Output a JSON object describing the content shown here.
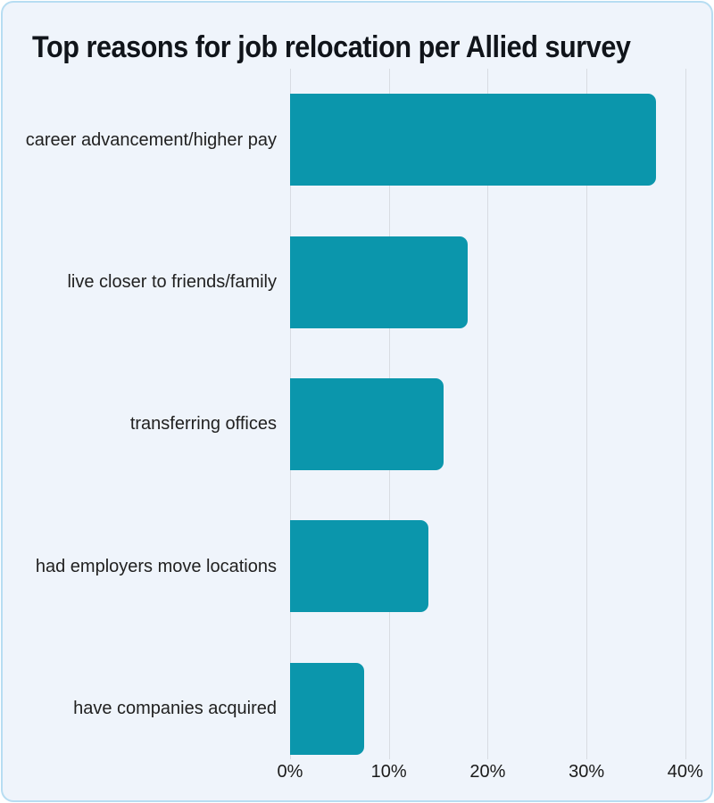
{
  "title": "Top reasons for job relocation per Allied survey",
  "chart_data": {
    "type": "bar",
    "orientation": "horizontal",
    "title": "Top reasons for job relocation per Allied survey",
    "categories": [
      "career advancement/higher pay",
      "live closer to friends/family",
      "transferring offices",
      "had employers move locations",
      "have companies acquired"
    ],
    "values": [
      37,
      18,
      15.5,
      14,
      7.5
    ],
    "unit": "%",
    "xlabel": "",
    "ylabel": "",
    "xlim": [
      0,
      42
    ],
    "xticks": [
      0,
      10,
      20,
      30,
      40
    ],
    "xtick_labels": [
      "0%",
      "10%",
      "20%",
      "30%",
      "40%"
    ],
    "grid": "vertical",
    "legend": "none"
  },
  "colors": {
    "bar": "#0b96ac",
    "card_background": "#eff4fb",
    "card_border": "#b7ddf2",
    "gridline": "#d8dce2",
    "title_text": "#10141a",
    "label_text": "#212121"
  }
}
